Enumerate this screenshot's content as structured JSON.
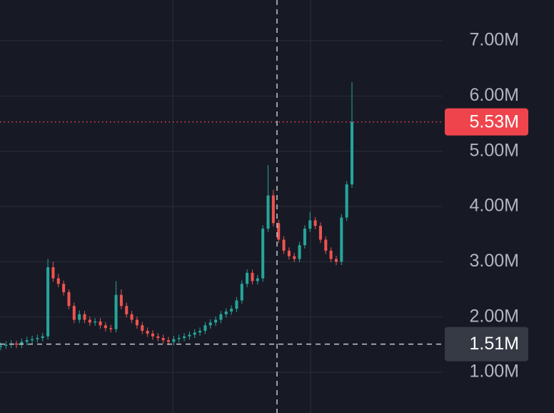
{
  "chart_data": {
    "type": "candlestick",
    "up_color": "#26a69a",
    "down_color": "#ef5350",
    "ylim": [
      0.263,
      7.737
    ],
    "yticks": [
      {
        "value": 1,
        "label": "1.00M"
      },
      {
        "value": 2,
        "label": "2.00M"
      },
      {
        "value": 3,
        "label": "3.00M"
      },
      {
        "value": 4,
        "label": "4.00M"
      },
      {
        "value": 5,
        "label": "5.00M"
      },
      {
        "value": 6,
        "label": "6.00M"
      },
      {
        "value": 7,
        "label": "7.00M"
      }
    ],
    "grid": true,
    "last_price": {
      "value": 5.53,
      "label": "5.53M",
      "color": "#f0444c"
    },
    "crosshair": {
      "value": 1.51,
      "label": "1.51M"
    },
    "open": [
      1.46,
      1.48,
      1.5,
      1.52,
      1.5,
      1.55,
      1.58,
      1.6,
      1.62,
      1.65,
      2.9,
      2.7,
      2.6,
      2.45,
      2.2,
      1.95,
      2.05,
      1.95,
      1.9,
      1.92,
      1.85,
      1.8,
      1.78,
      2.4,
      2.2,
      2.05,
      1.95,
      1.85,
      1.75,
      1.7,
      1.65,
      1.62,
      1.58,
      1.55,
      1.6,
      1.62,
      1.65,
      1.68,
      1.72,
      1.75,
      1.85,
      1.9,
      1.95,
      2.05,
      2.1,
      2.15,
      2.3,
      2.6,
      2.8,
      2.65,
      2.7,
      3.6,
      4.2,
      3.7,
      3.4,
      3.2,
      3.1,
      3.05,
      3.3,
      3.6,
      3.75,
      3.65,
      3.4,
      3.2,
      3.05,
      3.0,
      3.8,
      4.4
    ],
    "high": [
      1.54,
      1.56,
      1.58,
      1.57,
      1.61,
      1.64,
      1.66,
      1.68,
      1.71,
      3.05,
      3.0,
      2.78,
      2.66,
      2.5,
      2.26,
      2.12,
      2.11,
      2.01,
      1.98,
      1.98,
      1.91,
      1.86,
      2.65,
      2.5,
      2.26,
      2.11,
      2.01,
      1.91,
      1.81,
      1.76,
      1.71,
      1.68,
      1.64,
      1.66,
      1.68,
      1.71,
      1.74,
      1.78,
      1.81,
      1.91,
      1.96,
      2.01,
      2.11,
      2.16,
      2.21,
      2.36,
      2.66,
      2.86,
      2.86,
      2.76,
      3.66,
      4.75,
      4.3,
      3.76,
      3.46,
      3.26,
      3.16,
      3.36,
      3.66,
      3.9,
      3.81,
      3.71,
      3.46,
      3.26,
      3.11,
      3.86,
      4.46,
      6.25
    ],
    "low": [
      1.4,
      1.42,
      1.44,
      1.44,
      1.44,
      1.49,
      1.52,
      1.54,
      1.56,
      1.59,
      2.64,
      2.54,
      2.39,
      2.14,
      1.89,
      1.89,
      1.89,
      1.84,
      1.84,
      1.79,
      1.74,
      1.72,
      1.72,
      2.14,
      1.99,
      1.89,
      1.79,
      1.69,
      1.64,
      1.59,
      1.56,
      1.52,
      1.49,
      1.49,
      1.54,
      1.56,
      1.59,
      1.62,
      1.66,
      1.69,
      1.79,
      1.84,
      1.89,
      1.99,
      2.04,
      2.09,
      2.24,
      2.54,
      2.59,
      2.59,
      2.64,
      3.54,
      3.64,
      3.34,
      3.14,
      3.04,
      2.99,
      2.99,
      3.24,
      3.54,
      3.59,
      3.34,
      3.14,
      2.99,
      2.94,
      2.94,
      3.74,
      4.34
    ],
    "close": [
      1.48,
      1.5,
      1.52,
      1.5,
      1.55,
      1.58,
      1.6,
      1.62,
      1.65,
      2.9,
      2.7,
      2.6,
      2.45,
      2.2,
      1.95,
      2.05,
      1.95,
      1.9,
      1.92,
      1.85,
      1.8,
      1.78,
      2.4,
      2.2,
      2.05,
      1.95,
      1.85,
      1.75,
      1.7,
      1.65,
      1.62,
      1.58,
      1.55,
      1.6,
      1.62,
      1.65,
      1.68,
      1.72,
      1.75,
      1.85,
      1.9,
      1.95,
      2.05,
      2.1,
      2.15,
      2.3,
      2.6,
      2.8,
      2.65,
      2.7,
      3.6,
      4.2,
      3.7,
      3.4,
      3.2,
      3.1,
      3.05,
      3.3,
      3.6,
      3.75,
      3.65,
      3.4,
      3.2,
      3.05,
      3.0,
      3.8,
      4.4,
      5.53
    ]
  }
}
